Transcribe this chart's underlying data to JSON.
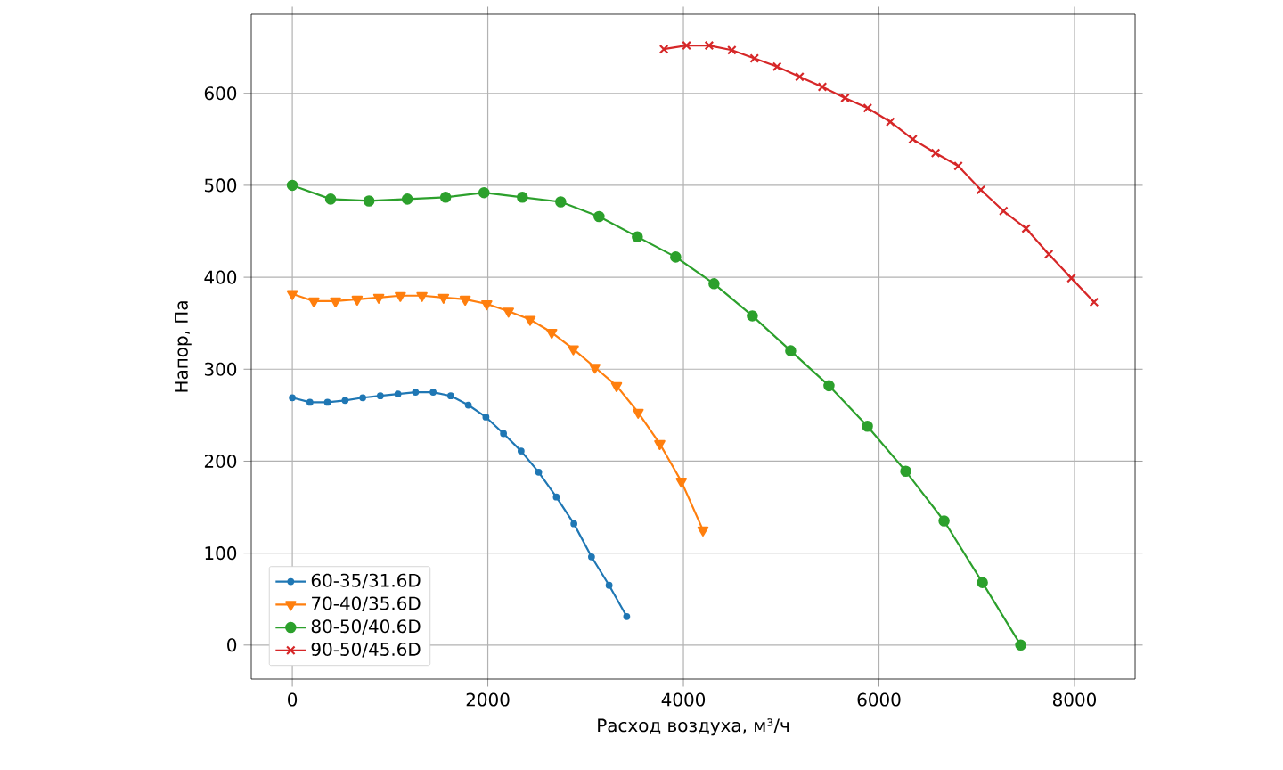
{
  "chart_data": {
    "type": "line",
    "xlabel": "Расход воздуха, м³/ч",
    "ylabel": "Напор, Па",
    "xlim": [
      -420,
      8620
    ],
    "ylim": [
      -37,
      686
    ],
    "xticks": [
      0,
      2000,
      4000,
      6000,
      8000
    ],
    "yticks": [
      0,
      100,
      200,
      300,
      400,
      500,
      600
    ],
    "grid": true,
    "legend": "bottom left",
    "series": [
      {
        "name": "60-35/31.6D",
        "color": "#1f77b4",
        "marker": "circle",
        "x": [
          0,
          180,
          360,
          540,
          720,
          900,
          1080,
          1260,
          1440,
          1620,
          1800,
          1980,
          2160,
          2340,
          2520,
          2700,
          2880,
          3060,
          3240,
          3420
        ],
        "values": [
          269,
          264,
          264,
          266,
          269,
          271,
          273,
          275,
          275,
          271,
          261,
          248,
          230,
          211,
          188,
          161,
          132,
          96,
          65,
          31
        ]
      },
      {
        "name": "70-40/35.6D",
        "color": "#ff7f0e",
        "marker": "triangle",
        "x": [
          0,
          221,
          442,
          663,
          884,
          1105,
          1326,
          1547,
          1768,
          1989,
          2211,
          2432,
          2653,
          2874,
          3095,
          3316,
          3537,
          3758,
          3979,
          4200
        ],
        "values": [
          382,
          374,
          374,
          376,
          378,
          380,
          380,
          378,
          376,
          371,
          363,
          354,
          340,
          322,
          302,
          282,
          253,
          219,
          178,
          125
        ]
      },
      {
        "name": "80-50/40.6D",
        "color": "#2ca02c",
        "marker": "circle",
        "x": [
          0,
          392,
          784,
          1176,
          1568,
          1961,
          2353,
          2745,
          3137,
          3529,
          3921,
          4313,
          4705,
          5097,
          5489,
          5882,
          6274,
          6666,
          7058,
          7450
        ],
        "values": [
          500,
          485,
          483,
          485,
          487,
          492,
          487,
          482,
          466,
          444,
          422,
          393,
          358,
          320,
          282,
          238,
          189,
          135,
          68,
          0
        ]
      },
      {
        "name": "90-50/45.6D",
        "color": "#d62728",
        "marker": "cross",
        "x": [
          3800,
          4032,
          4263,
          4495,
          4726,
          4958,
          5189,
          5421,
          5653,
          5884,
          6116,
          6347,
          6579,
          6811,
          7042,
          7274,
          7505,
          7737,
          7968,
          8200
        ],
        "values": [
          648,
          652,
          652,
          647,
          638,
          629,
          618,
          607,
          595,
          584,
          569,
          550,
          535,
          521,
          495,
          472,
          453,
          425,
          399,
          373
        ]
      }
    ]
  }
}
